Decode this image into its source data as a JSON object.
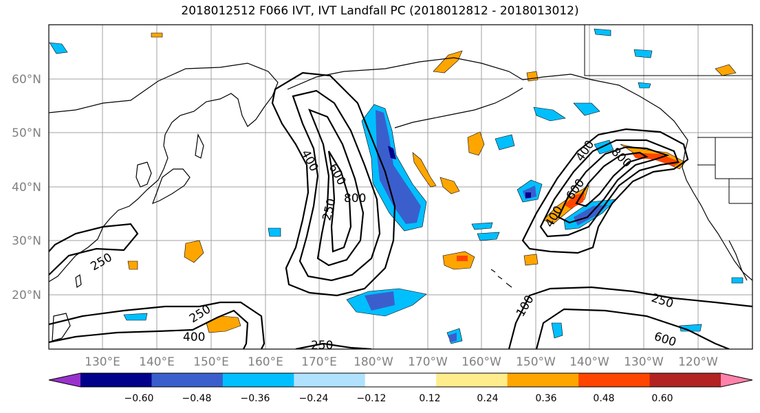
{
  "title": "2018012512 F066 IVT, IVT Landfall PC (2018012812 - 2018013012)",
  "latitude_labels": [
    "60°N",
    "50°N",
    "40°N",
    "30°N",
    "20°N"
  ],
  "longitude_labels": [
    "130°E",
    "140°E",
    "150°E",
    "160°E",
    "170°E",
    "180°W",
    "170°W",
    "160°W",
    "150°W",
    "140°W",
    "130°W",
    "120°W"
  ],
  "ivt_contour_labels": [
    "400",
    "600",
    "800",
    "250",
    "250",
    "250",
    "400",
    "250",
    "400",
    "800",
    "600",
    "400",
    "250",
    "600",
    "100"
  ],
  "colorbar": {
    "tick_labels": [
      "−0.60",
      "−0.48",
      "−0.36",
      "−0.24",
      "−0.12",
      "0.12",
      "0.24",
      "0.36",
      "0.48",
      "0.60"
    ],
    "colors": [
      "#9932cc",
      "#00008b",
      "#3a5fcd",
      "#00bfff",
      "#b0e2ff",
      "#ffffff",
      "#ffec8b",
      "#ffa500",
      "#ff4500",
      "#b22222",
      "#ff82ab"
    ]
  },
  "colors": {
    "ivt_contour": "#000000",
    "coastline": "#000000",
    "gridline": "#a0a0a0",
    "axis_label": "#808080"
  }
}
